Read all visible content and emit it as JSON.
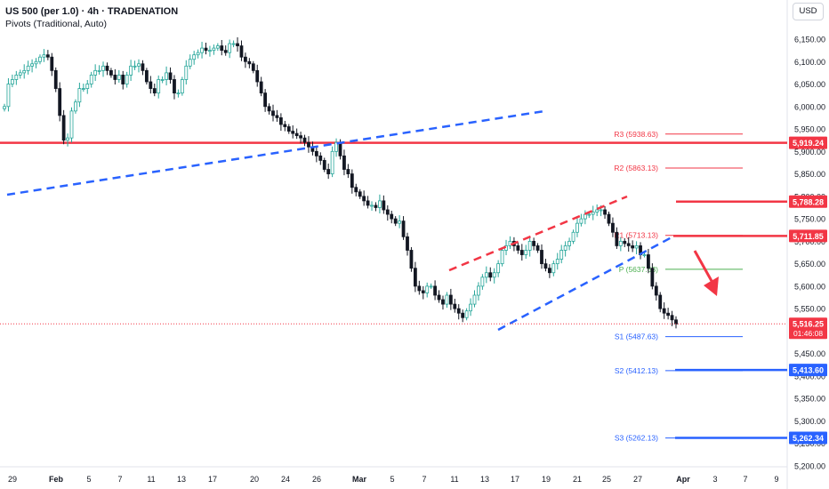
{
  "header": {
    "title": "US 500 (per 1.0) · 4h · TRADENATION",
    "indicator": "Pivots (Traditional, Auto)"
  },
  "currency_button": "USD",
  "colors": {
    "up": "#26a69a",
    "up_body": "#ffffff",
    "down": "#131722",
    "resistance": "#f23645",
    "support": "#2962ff",
    "pivot": "#4caf50"
  },
  "chart_data": {
    "type": "candlestick",
    "symbol": "US 500",
    "timeframe": "4h",
    "ylim": [
      5190,
      6190
    ],
    "y_ticks": [
      "6,150.00",
      "6,100.00",
      "6,050.00",
      "6,000.00",
      "5,950.00",
      "5,900.00",
      "5,850.00",
      "5,800.00",
      "5,750.00",
      "5,700.00",
      "5,650.00",
      "5,600.00",
      "5,550.00",
      "5,500.00",
      "5,450.00",
      "5,400.00",
      "5,350.00",
      "5,300.00",
      "5,250.00",
      "5,200.00"
    ],
    "x_ticks": [
      "29",
      "Feb",
      "5",
      "7",
      "11",
      "13",
      "17",
      "20",
      "24",
      "26",
      "Mar",
      "5",
      "7",
      "11",
      "13",
      "17",
      "19",
      "21",
      "25",
      "27",
      "Apr",
      "3",
      "7",
      "9"
    ],
    "price_close": [
      6000,
      6050,
      6060,
      6070,
      6075,
      6080,
      6090,
      6095,
      6100,
      6110,
      6115,
      6110,
      6080,
      6040,
      5980,
      5925,
      5930,
      5990,
      6010,
      6040,
      6040,
      6050,
      6070,
      6080,
      6080,
      6090,
      6080,
      6070,
      6060,
      6070,
      6050,
      6070,
      6090,
      6090,
      6095,
      6080,
      6055,
      6040,
      6030,
      6060,
      6060,
      6075,
      6060,
      6030,
      6030,
      6060,
      6090,
      6105,
      6115,
      6120,
      6130,
      6125,
      6125,
      6130,
      6135,
      6125,
      6120,
      6140,
      6140,
      6135,
      6110,
      6100,
      6095,
      6080,
      6055,
      6030,
      6000,
      5990,
      5980,
      5975,
      5960,
      5955,
      5945,
      5940,
      5935,
      5930,
      5920,
      5910,
      5900,
      5890,
      5880,
      5860,
      5850,
      5900,
      5920,
      5890,
      5860,
      5850,
      5820,
      5810,
      5800,
      5790,
      5780,
      5780,
      5775,
      5790,
      5770,
      5760,
      5750,
      5740,
      5745,
      5710,
      5680,
      5640,
      5600,
      5590,
      5585,
      5600,
      5600,
      5580,
      5570,
      5560,
      5580,
      5560,
      5550,
      5540,
      5530,
      5545,
      5560,
      5580,
      5600,
      5620,
      5630,
      5620,
      5630,
      5650,
      5680,
      5690,
      5700,
      5690,
      5680,
      5670,
      5680,
      5700,
      5690,
      5680,
      5650,
      5640,
      5630,
      5650,
      5660,
      5680,
      5690,
      5700,
      5720,
      5740,
      5750,
      5760,
      5760,
      5765,
      5770,
      5770,
      5760,
      5740,
      5720,
      5690,
      5700,
      5695,
      5690,
      5685,
      5690,
      5670,
      5670,
      5640,
      5600,
      5580,
      5550,
      5540,
      5535,
      5525,
      5516
    ],
    "current_price": "5,516.25",
    "countdown": "01:46:08",
    "key_levels": [
      {
        "label": "5,919.24",
        "value": 5919.24,
        "color": "#f23645",
        "type": "resistance"
      },
      {
        "label": "5,788.28",
        "value": 5788.28,
        "color": "#f23645",
        "type": "resistance"
      },
      {
        "label": "5,711.85",
        "value": 5711.85,
        "color": "#f23645",
        "type": "resistance"
      },
      {
        "label": "5,413.60",
        "value": 5413.6,
        "color": "#2962ff",
        "type": "support"
      },
      {
        "label": "5,262.34",
        "value": 5262.34,
        "color": "#2962ff",
        "type": "support"
      }
    ],
    "pivots": [
      {
        "label": "R3 (5938.63)",
        "value": 5938.63,
        "color": "#f23645"
      },
      {
        "label": "R2 (5863.13)",
        "value": 5863.13,
        "color": "#f23645"
      },
      {
        "label": "R1 (5713.13)",
        "value": 5713.13,
        "color": "#f23645"
      },
      {
        "label": "P (5637.63)",
        "value": 5637.63,
        "color": "#4caf50"
      },
      {
        "label": "S1 (5487.63)",
        "value": 5487.63,
        "color": "#2962ff"
      },
      {
        "label": "S2 (5412.13)",
        "value": 5412.13,
        "color": "#2962ff"
      },
      {
        "label": "S3 (5262.13)",
        "value": 5262.13,
        "color": "#2962ff"
      }
    ],
    "trendlines": [
      {
        "name": "long-trendline",
        "color": "#2962ff",
        "dashed": true,
        "points": [
          [
            5800
          ],
          [
            5990
          ]
        ]
      },
      {
        "name": "channel-upper",
        "color": "#f23645",
        "dashed": true,
        "points": [
          [
            5635
          ],
          [
            5800
          ]
        ]
      },
      {
        "name": "channel-lower",
        "color": "#2962ff",
        "dashed": true,
        "points": [
          [
            5508
          ],
          [
            5713
          ]
        ]
      }
    ],
    "annotation_arrow": {
      "color": "#f23645",
      "direction": "down"
    },
    "grid": false
  }
}
